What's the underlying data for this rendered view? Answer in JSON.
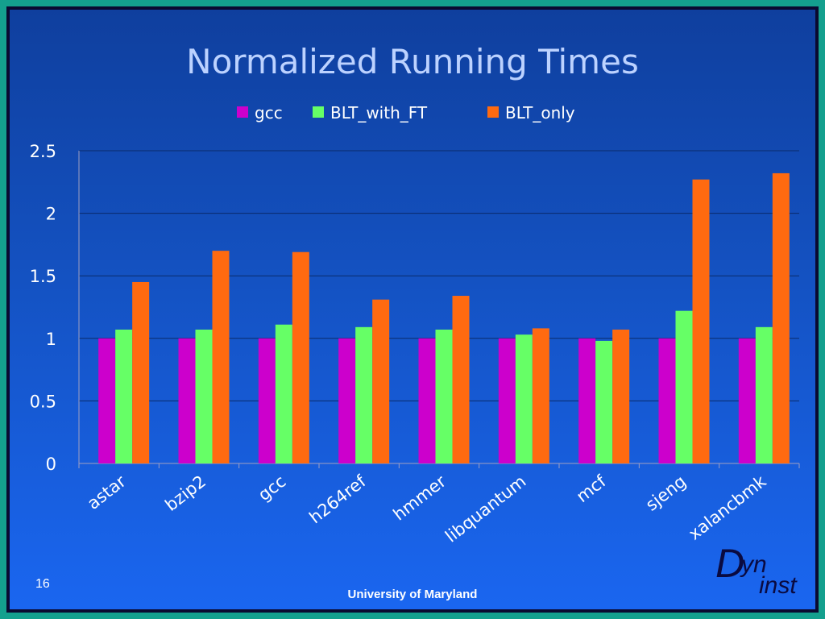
{
  "title": "Normalized Running Times",
  "page_number": "16",
  "footer": "University of Maryland",
  "logo": {
    "d": "D",
    "yn": "yn",
    "inst": "inst"
  },
  "colors": {
    "gcc": "#cc00cc",
    "BLT_with_FT": "#66ff66",
    "BLT_only": "#ff6a10"
  },
  "chart_data": {
    "type": "bar",
    "title": "Normalized Running Times",
    "categories": [
      "astar",
      "bzip2",
      "gcc",
      "h264ref",
      "hmmer",
      "libquantum",
      "mcf",
      "sjeng",
      "xalancbmk"
    ],
    "series": [
      {
        "name": "gcc",
        "values": [
          1,
          1,
          1,
          1,
          1,
          1,
          1,
          1,
          1
        ]
      },
      {
        "name": "BLT_with_FT",
        "values": [
          1.07,
          1.07,
          1.11,
          1.09,
          1.07,
          1.03,
          0.98,
          1.22,
          1.09
        ]
      },
      {
        "name": "BLT_only",
        "values": [
          1.45,
          1.7,
          1.69,
          1.31,
          1.34,
          1.08,
          1.07,
          2.27,
          2.32
        ]
      }
    ],
    "ylim": [
      0,
      2.5
    ],
    "yticks": [
      "0",
      "0.5",
      "1",
      "1.5",
      "2",
      "2.5"
    ],
    "ytick_values": [
      0,
      0.5,
      1,
      1.5,
      2,
      2.5
    ],
    "xlabel": "",
    "ylabel": "",
    "grid": true,
    "legend": "top"
  }
}
